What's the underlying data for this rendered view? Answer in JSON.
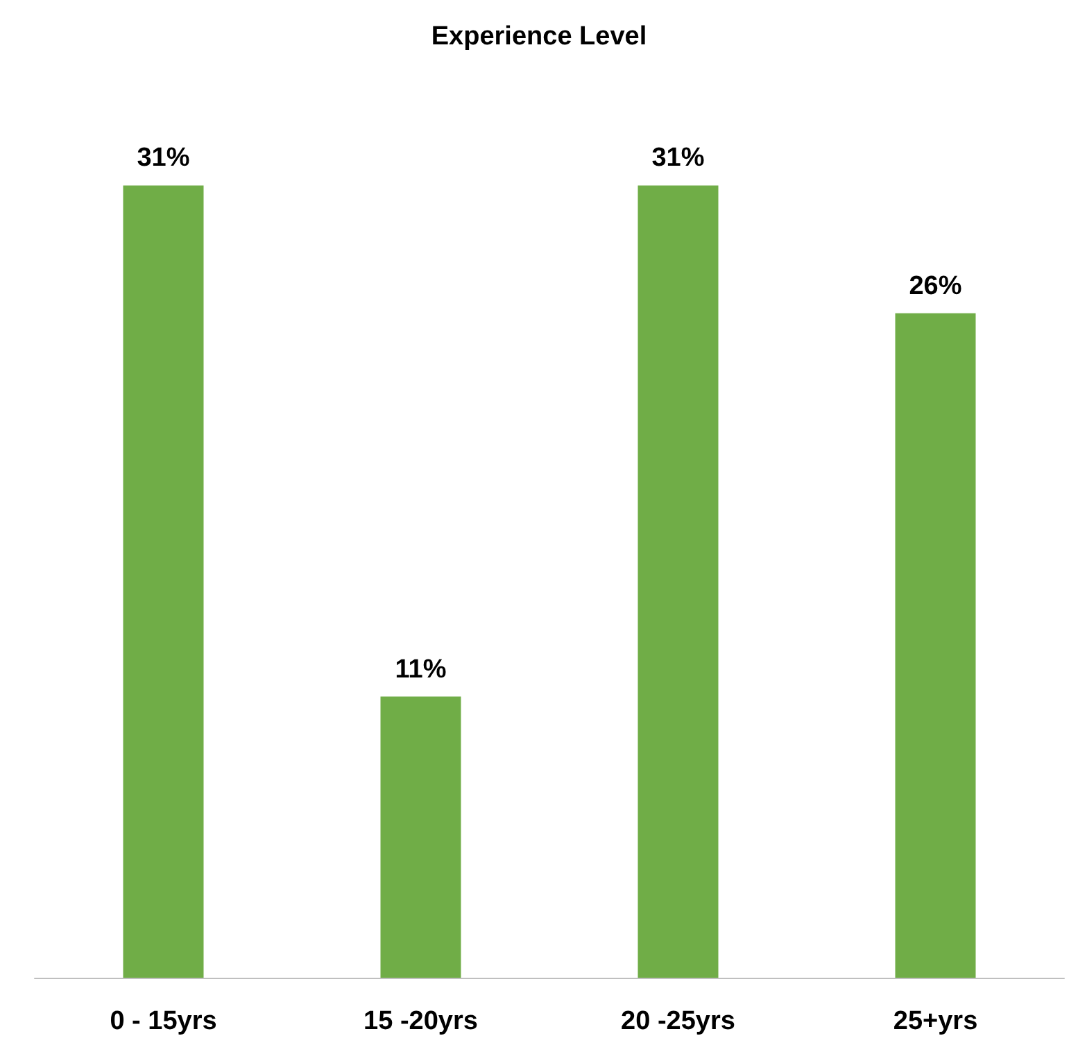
{
  "chart_data": {
    "type": "bar",
    "title": "Experience Level",
    "categories": [
      "0 - 15yrs",
      "15 -20yrs",
      "20 -25yrs",
      "25+yrs"
    ],
    "values": [
      31,
      11,
      31,
      26
    ],
    "color": "#70ad47",
    "value_labels": [
      "31%",
      "11%",
      "31%",
      "26%"
    ]
  }
}
